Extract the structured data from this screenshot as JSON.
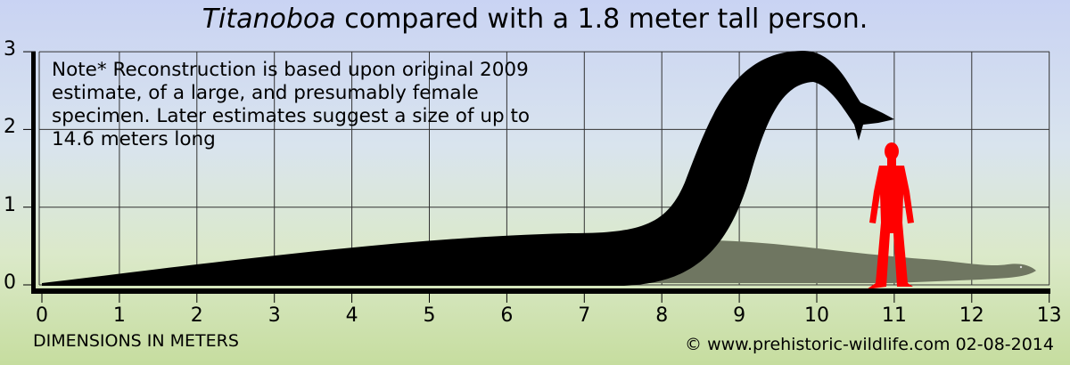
{
  "title": {
    "italic": "Titanoboa",
    "rest": " compared with a 1.8 meter tall person."
  },
  "note": {
    "lines": [
      "Note* Reconstruction is based upon original 2009",
      "estimate, of a large, and presumably female",
      "specimen. Later estimates suggest a size of up to",
      "14.6 meters long"
    ]
  },
  "y_axis": {
    "ticks": [
      "0",
      "1",
      "2",
      "3"
    ]
  },
  "x_axis": {
    "ticks": [
      "0",
      "1",
      "2",
      "3",
      "4",
      "5",
      "6",
      "7",
      "8",
      "9",
      "10",
      "11",
      "12",
      "13"
    ],
    "label": "DIMENSIONS IN METERS"
  },
  "credit": "© www.prehistoric-wildlife.com 02-08-2014",
  "colors": {
    "snake": "#000000",
    "later_estimate_snake": "#6f7661",
    "person": "#ff0000"
  }
}
